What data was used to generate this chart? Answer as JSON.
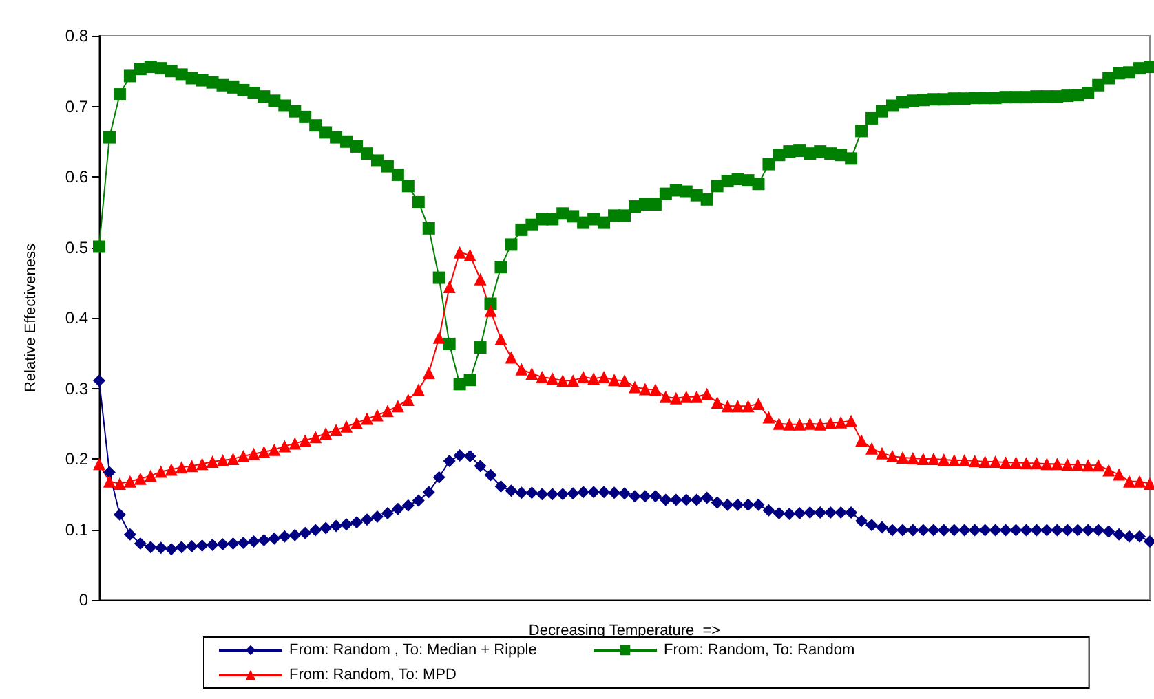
{
  "chart_data": {
    "type": "line",
    "xlabel": "Decreasing Temperature  =>",
    "ylabel": "Relative Effectiveness",
    "categories": [
      null,
      null,
      null,
      null,
      null,
      null,
      null,
      null,
      null,
      null,
      null,
      null,
      null,
      null,
      null,
      null,
      null,
      null,
      null,
      null,
      null,
      null,
      null,
      null,
      null,
      null,
      null,
      null,
      null,
      null,
      null,
      null,
      null,
      null,
      null,
      null,
      null,
      null,
      null,
      null,
      null,
      null,
      null,
      null,
      null,
      null,
      null,
      null,
      null,
      null,
      null,
      null,
      null,
      null,
      null,
      null,
      null,
      null,
      null,
      null,
      null,
      null,
      null,
      null,
      null,
      null,
      null,
      null,
      null,
      null,
      null,
      null,
      null,
      null,
      null,
      null,
      null,
      null,
      null,
      null,
      null,
      null,
      null,
      null,
      null,
      null,
      null,
      null,
      null,
      null,
      null,
      null,
      null,
      null,
      null,
      null,
      null,
      null,
      null,
      null,
      null,
      null,
      null
    ],
    "ylim": [
      0,
      0.8
    ],
    "yticks": [
      0,
      0.1,
      0.2,
      0.3,
      0.4,
      0.5,
      0.6,
      0.7,
      0.8
    ],
    "grid": false,
    "legend": "bottom",
    "series": [
      {
        "name": "From: Random , To: Median + Ripple",
        "color": "#000080",
        "marker": "diamond",
        "values": [
          0.311,
          0.181,
          0.121,
          0.093,
          0.08,
          0.075,
          0.074,
          0.072,
          0.075,
          0.076,
          0.077,
          0.078,
          0.079,
          0.08,
          0.081,
          0.083,
          0.085,
          0.087,
          0.09,
          0.092,
          0.095,
          0.099,
          0.102,
          0.105,
          0.107,
          0.11,
          0.114,
          0.118,
          0.123,
          0.129,
          0.134,
          0.141,
          0.153,
          0.174,
          0.197,
          0.205,
          0.204,
          0.19,
          0.177,
          0.161,
          0.155,
          0.152,
          0.152,
          0.15,
          0.15,
          0.15,
          0.151,
          0.153,
          0.153,
          0.153,
          0.152,
          0.151,
          0.147,
          0.147,
          0.147,
          0.142,
          0.142,
          0.142,
          0.142,
          0.145,
          0.138,
          0.135,
          0.135,
          0.135,
          0.135,
          0.127,
          0.123,
          0.122,
          0.123,
          0.124,
          0.124,
          0.124,
          0.124,
          0.124,
          0.112,
          0.106,
          0.103,
          0.099,
          0.099,
          0.099,
          0.099,
          0.099,
          0.099,
          0.099,
          0.099,
          0.099,
          0.099,
          0.099,
          0.099,
          0.099,
          0.099,
          0.099,
          0.099,
          0.099,
          0.099,
          0.099,
          0.099,
          0.099,
          0.097,
          0.093,
          0.09,
          0.09,
          0.083
        ]
      },
      {
        "name": "From: Random, To: Random",
        "color": "#008000",
        "marker": "square",
        "values": [
          0.501,
          0.656,
          0.717,
          0.743,
          0.753,
          0.756,
          0.754,
          0.75,
          0.745,
          0.74,
          0.737,
          0.734,
          0.73,
          0.727,
          0.723,
          0.719,
          0.714,
          0.708,
          0.701,
          0.693,
          0.685,
          0.673,
          0.663,
          0.656,
          0.65,
          0.643,
          0.633,
          0.623,
          0.615,
          0.603,
          0.587,
          0.564,
          0.527,
          0.457,
          0.363,
          0.306,
          0.312,
          0.358,
          0.42,
          0.472,
          0.504,
          0.525,
          0.532,
          0.54,
          0.54,
          0.548,
          0.544,
          0.535,
          0.54,
          0.535,
          0.545,
          0.545,
          0.558,
          0.561,
          0.561,
          0.576,
          0.581,
          0.579,
          0.574,
          0.568,
          0.587,
          0.594,
          0.597,
          0.595,
          0.59,
          0.618,
          0.631,
          0.636,
          0.637,
          0.633,
          0.636,
          0.633,
          0.631,
          0.626,
          0.665,
          0.683,
          0.693,
          0.701,
          0.706,
          0.708,
          0.709,
          0.71,
          0.71,
          0.711,
          0.711,
          0.712,
          0.712,
          0.712,
          0.713,
          0.713,
          0.713,
          0.714,
          0.714,
          0.714,
          0.715,
          0.716,
          0.719,
          0.73,
          0.74,
          0.747,
          0.748,
          0.754,
          0.756
        ]
      },
      {
        "name": "From: Random, To: MPD",
        "color": "#ff0000",
        "marker": "triangle",
        "values": [
          0.193,
          0.168,
          0.165,
          0.168,
          0.172,
          0.176,
          0.182,
          0.185,
          0.188,
          0.19,
          0.193,
          0.196,
          0.198,
          0.2,
          0.204,
          0.207,
          0.21,
          0.213,
          0.218,
          0.222,
          0.226,
          0.231,
          0.236,
          0.241,
          0.246,
          0.251,
          0.257,
          0.262,
          0.268,
          0.275,
          0.284,
          0.298,
          0.322,
          0.372,
          0.444,
          0.493,
          0.489,
          0.455,
          0.41,
          0.37,
          0.344,
          0.327,
          0.321,
          0.316,
          0.314,
          0.311,
          0.311,
          0.316,
          0.314,
          0.316,
          0.312,
          0.311,
          0.302,
          0.299,
          0.298,
          0.288,
          0.286,
          0.288,
          0.288,
          0.292,
          0.28,
          0.275,
          0.275,
          0.275,
          0.278,
          0.259,
          0.25,
          0.249,
          0.249,
          0.25,
          0.249,
          0.251,
          0.252,
          0.254,
          0.226,
          0.215,
          0.208,
          0.204,
          0.202,
          0.201,
          0.2,
          0.2,
          0.199,
          0.198,
          0.198,
          0.197,
          0.196,
          0.196,
          0.195,
          0.195,
          0.194,
          0.194,
          0.193,
          0.193,
          0.192,
          0.192,
          0.191,
          0.191,
          0.184,
          0.178,
          0.168,
          0.168,
          0.165
        ]
      }
    ]
  }
}
